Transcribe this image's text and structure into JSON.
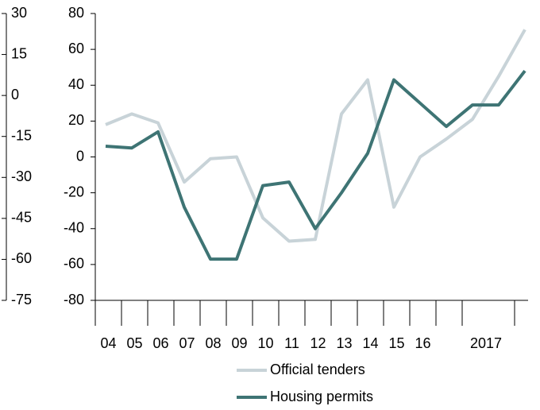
{
  "chart_data": {
    "type": "line",
    "categories": [
      "04",
      "05",
      "06",
      "07",
      "08",
      "09",
      "10",
      "11",
      "12",
      "13",
      "14",
      "15",
      "16",
      null,
      null,
      "2017",
      null
    ],
    "series": [
      {
        "name": "Official tenders",
        "color": "#c8d3d8",
        "values": [
          18,
          24,
          19,
          -14,
          -1,
          0,
          -34,
          -47,
          -46,
          24,
          43,
          -28,
          0,
          10,
          21,
          45,
          71
        ]
      },
      {
        "name": "Housing permits",
        "color": "#3e7474",
        "values": [
          6,
          5,
          14,
          -28,
          -57,
          -57,
          -16,
          -14,
          -40,
          -20,
          2,
          43,
          30,
          17,
          29,
          29,
          48
        ]
      }
    ],
    "ylim": [
      -80,
      80
    ],
    "yticks": [
      -80,
      -60,
      -40,
      -20,
      0,
      20,
      40,
      60,
      80
    ],
    "y2lim": [
      -75,
      30
    ],
    "y2ticks": [
      -75,
      -60,
      -45,
      -30,
      -15,
      0,
      15,
      30
    ],
    "legend": "bottom"
  }
}
